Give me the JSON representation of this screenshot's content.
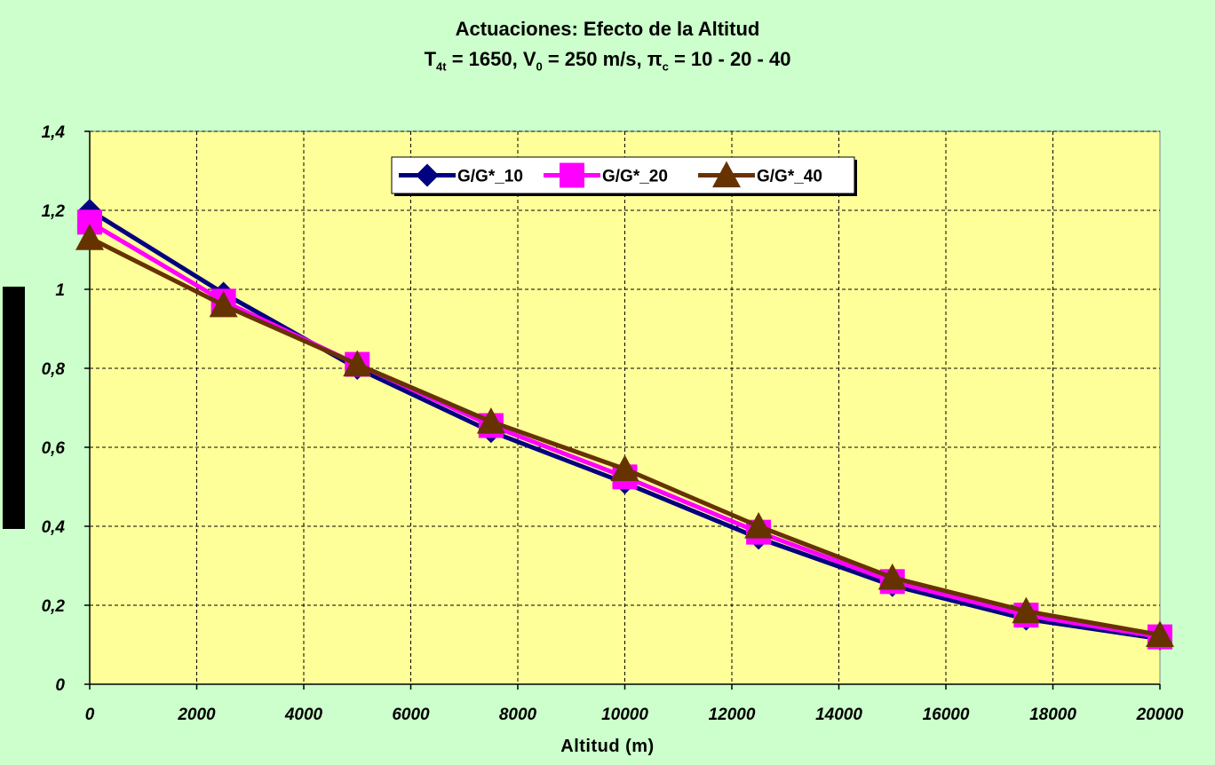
{
  "chart_data": {
    "type": "line",
    "title": "Actuaciones: Efecto de la Altitud",
    "subtitle": {
      "t_symbol": "T",
      "t_sub": "4t",
      "t_value": " = 1650, V",
      "v_sub": "0",
      "v_value": " = 250 m/s, ",
      "pi_symbol": "π",
      "pi_sub": "c",
      "pi_value": " = 10 - 20 - 40"
    },
    "xlabel": "Altitud (m)",
    "ylabel": "",
    "xlim": [
      0,
      20000
    ],
    "ylim": [
      0,
      1.4
    ],
    "x_ticks": [
      "0",
      "2000",
      "4000",
      "6000",
      "8000",
      "10000",
      "12000",
      "14000",
      "16000",
      "18000",
      "20000"
    ],
    "y_ticks": [
      "0",
      "0,2",
      "0,4",
      "0,6",
      "0,8",
      "1",
      "1,2",
      "1,4"
    ],
    "grid": true,
    "legend_position": "top-center",
    "plot_background": "#ffff99",
    "page_background": "#ccffcc",
    "x": [
      0,
      2500,
      5000,
      7500,
      10000,
      12500,
      15000,
      17500,
      20000
    ],
    "series": [
      {
        "name": "G/G*_10",
        "color": "#000080",
        "marker": "diamond",
        "values": [
          1.2,
          0.99,
          0.8,
          0.64,
          0.51,
          0.37,
          0.25,
          0.165,
          0.115
        ]
      },
      {
        "name": "G/G*_20",
        "color": "#ff00ff",
        "marker": "square",
        "values": [
          1.17,
          0.97,
          0.81,
          0.655,
          0.525,
          0.385,
          0.26,
          0.175,
          0.12
        ]
      },
      {
        "name": "G/G*_40",
        "color": "#663300",
        "marker": "triangle",
        "values": [
          1.13,
          0.96,
          0.81,
          0.665,
          0.545,
          0.4,
          0.27,
          0.185,
          0.125
        ]
      }
    ]
  }
}
